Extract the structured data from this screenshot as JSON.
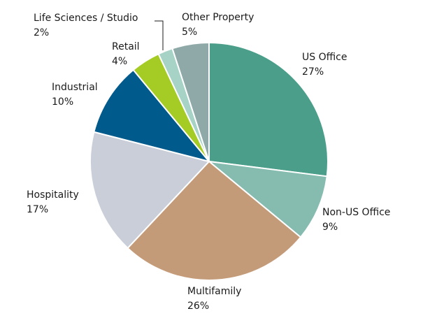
{
  "chart_data": {
    "type": "pie",
    "title": "",
    "slices": [
      {
        "label": "US Office",
        "value": 27,
        "value_label": "27%",
        "color": "#4a9e8a"
      },
      {
        "label": "Non-US Office",
        "value": 9,
        "value_label": "9%",
        "color": "#85bcaf"
      },
      {
        "label": "Multifamily",
        "value": 26,
        "value_label": "26%",
        "color": "#c49b78"
      },
      {
        "label": "Hospitality",
        "value": 17,
        "value_label": "17%",
        "color": "#c9ced8"
      },
      {
        "label": "Industrial",
        "value": 10,
        "value_label": "10%",
        "color": "#005a8c"
      },
      {
        "label": "Retail",
        "value": 4,
        "value_label": "4%",
        "color": "#a5cc24"
      },
      {
        "label": "Life Sciences / Studio",
        "value": 2,
        "value_label": "2%",
        "color": "#a7d3c7"
      },
      {
        "label": "Other Property",
        "value": 5,
        "value_label": "5%",
        "color": "#8ea9a8"
      }
    ],
    "start_angle": "12 o'clock",
    "direction": "clockwise",
    "legend": "none (direct labels)"
  }
}
